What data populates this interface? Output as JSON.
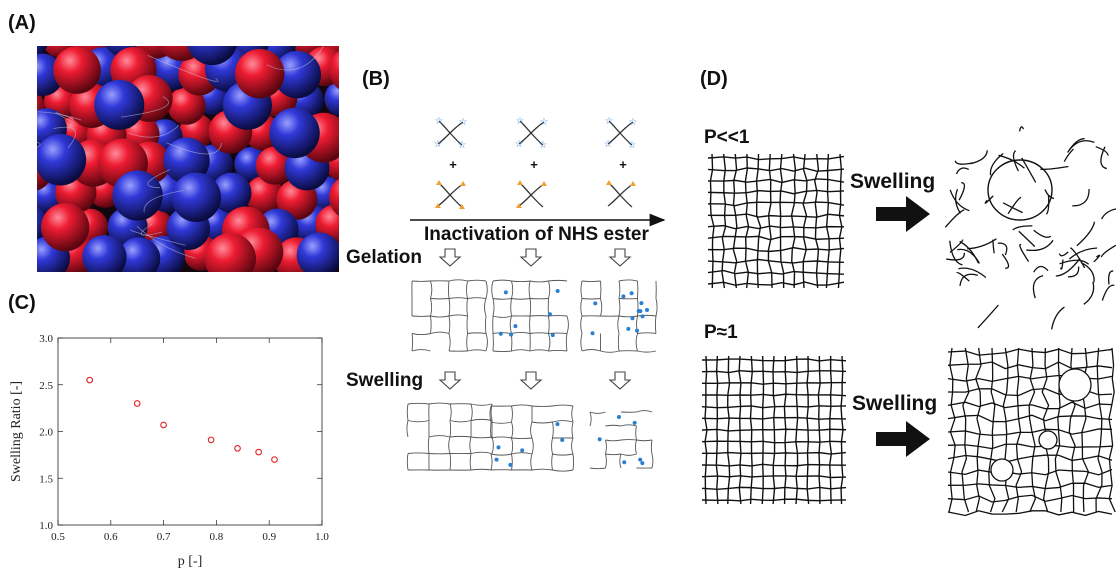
{
  "panels": {
    "a_label": "(A)",
    "b_label": "(B)",
    "c_label": "(C)",
    "d_label": "(D)"
  },
  "panel_b": {
    "arrow_label": "Inactivation of NHS ester",
    "gelation_label": "Gelation",
    "swelling_label": "Swelling",
    "plus_sign": "+",
    "colors": {
      "star_end": "#4a90d9",
      "triangle_end": "#f0a030",
      "dangling_dot": "#2b7fd0"
    }
  },
  "panel_d": {
    "top_condition": "P<<1",
    "bottom_condition": "P≈1",
    "top_arrow_label": "Swelling",
    "bottom_arrow_label": "Swelling"
  },
  "chart_data": {
    "type": "scatter",
    "xlabel": "p [-]",
    "ylabel": "Swelling Ratio [-]",
    "xlim": [
      0.5,
      1.0
    ],
    "ylim": [
      1.0,
      3.0
    ],
    "x_ticks": [
      "0.5",
      "0.6",
      "0.7",
      "0.8",
      "0.9",
      "1.0"
    ],
    "y_ticks": [
      "1.0",
      "1.5",
      "2.0",
      "2.5",
      "3.0"
    ],
    "series": [
      {
        "x": [
          0.56,
          0.65,
          0.7,
          0.79,
          0.84,
          0.88,
          0.91
        ],
        "y": [
          2.55,
          2.3,
          2.07,
          1.91,
          1.82,
          1.78,
          1.7
        ]
      }
    ],
    "marker_color": "#e02020",
    "grid": false
  }
}
